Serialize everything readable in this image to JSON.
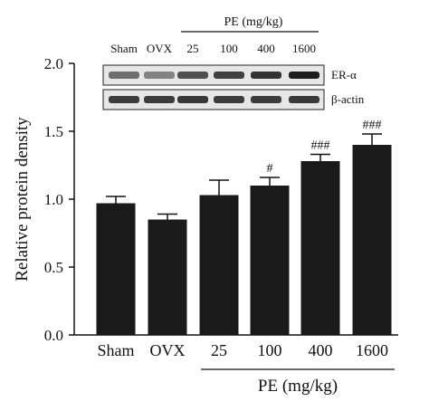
{
  "chart_data": {
    "type": "bar",
    "ylabel": "Relative protein density",
    "ylim": [
      0,
      2.0
    ],
    "yticks": [
      "0.0",
      "0.5",
      "1.0",
      "1.5",
      "2.0"
    ],
    "categories": [
      "Sham",
      "OVX",
      "25",
      "100",
      "400",
      "1600"
    ],
    "values": [
      0.97,
      0.85,
      1.03,
      1.1,
      1.28,
      1.4
    ],
    "errors": [
      0.05,
      0.04,
      0.11,
      0.06,
      0.05,
      0.08
    ],
    "significance": [
      "",
      "",
      "",
      "#",
      "###",
      "###"
    ],
    "group_label": "PE (mg/kg)",
    "bar_color": "#1a1a1a"
  },
  "blot": {
    "header_label": "PE (mg/kg)",
    "lane_labels": [
      "Sham",
      "OVX",
      "25",
      "100",
      "400",
      "1600"
    ],
    "rows": [
      {
        "label": "ER-α",
        "intensities": [
          0.55,
          0.45,
          0.7,
          0.78,
          0.85,
          0.95
        ]
      },
      {
        "label": "β-actin",
        "intensities": [
          0.8,
          0.8,
          0.82,
          0.8,
          0.8,
          0.82
        ]
      }
    ]
  }
}
